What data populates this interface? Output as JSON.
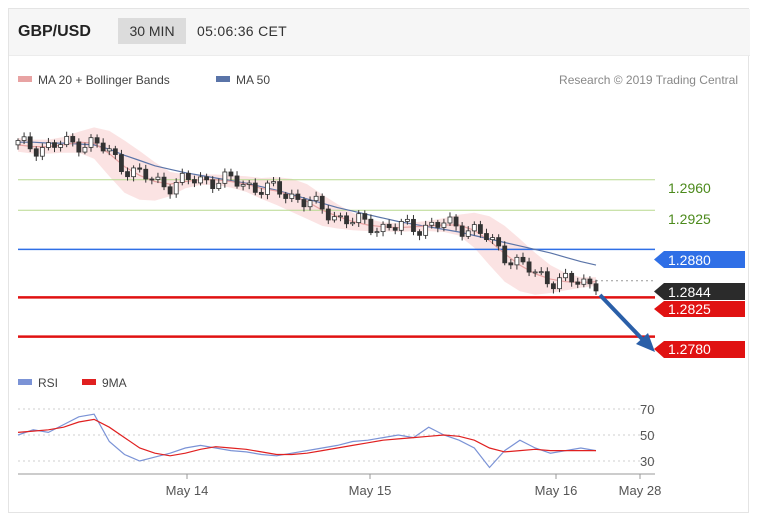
{
  "header": {
    "pair": "GBP/USD",
    "interval": "30 MIN",
    "time": "05:06:36 CET"
  },
  "legend": {
    "ma20": "MA 20 + Bollinger Bands",
    "ma50": "MA 50",
    "credit": "Research © 2019 Trading Central"
  },
  "rsi_legend": {
    "rsi": "RSI",
    "ma9": "9MA"
  },
  "colors": {
    "ma20": "#e8a3a3",
    "bollinger_fill": "#fbe0e0",
    "ma50": "#5a74a8",
    "resistance": "#2f6fe6",
    "support": "#e01212",
    "current": "#2b2b2b",
    "green_lines": "#b8d98f",
    "green_text": "#4c8a1c",
    "arrow": "#2a5fa8",
    "rsi_line": "#7b93d6",
    "rsi_ma": "#e02020"
  },
  "chart_data": [
    {
      "type": "candlestick",
      "title": "GBP/USD",
      "ylim": [
        1.276,
        1.304
      ],
      "x_labels": [
        "May 14",
        "May 15",
        "May 16",
        "May 28"
      ],
      "levels": [
        {
          "value": 1.296,
          "label": "1.2960",
          "kind": "reference"
        },
        {
          "value": 1.2925,
          "label": "1.2925",
          "kind": "reference"
        },
        {
          "value": 1.288,
          "label": "1.2880",
          "kind": "resistance"
        },
        {
          "value": 1.2844,
          "label": "1.2844",
          "kind": "current"
        },
        {
          "value": 1.2825,
          "label": "1.2825",
          "kind": "support"
        },
        {
          "value": 1.278,
          "label": "1.2780",
          "kind": "support"
        }
      ],
      "series": [
        {
          "name": "MA 20 + Bollinger Bands",
          "values": [
            1.3,
            1.2998,
            1.2998,
            1.3,
            1.3003,
            1.3002,
            1.299,
            1.2975,
            1.2965,
            1.2958,
            1.2955,
            1.2958,
            1.296,
            1.296,
            1.2958,
            1.2955,
            1.295,
            1.2947,
            1.2942,
            1.2935,
            1.2925,
            1.2918,
            1.2912,
            1.2908,
            1.2906,
            1.2905,
            1.2906,
            1.2907,
            1.2908,
            1.2908,
            1.2902,
            1.289,
            1.2875,
            1.2862,
            1.2852,
            1.2846,
            1.2843,
            1.2842,
            1.2843
          ]
        },
        {
          "name": "MA 50",
          "values": [
            1.3003,
            1.3003,
            1.3002,
            1.3002,
            1.3001,
            1.3,
            1.2995,
            1.2988,
            1.2982,
            1.2976,
            1.2972,
            1.2968,
            1.2965,
            1.2962,
            1.2959,
            1.2956,
            1.2952,
            1.2948,
            1.2943,
            1.2938,
            1.2933,
            1.2928,
            1.2924,
            1.292,
            1.2916,
            1.2912,
            1.2909,
            1.2906,
            1.2903,
            1.29,
            1.2896,
            1.2892,
            1.2888,
            1.2884,
            1.288,
            1.2876,
            1.2871,
            1.2866,
            1.2862
          ]
        }
      ]
    },
    {
      "type": "line",
      "title": "RSI",
      "ylim": [
        20,
        80
      ],
      "yticks": [
        70,
        50,
        30
      ],
      "series": [
        {
          "name": "RSI",
          "values": [
            50,
            54,
            52,
            58,
            64,
            66,
            45,
            35,
            30,
            33,
            36,
            40,
            42,
            40,
            38,
            37,
            35,
            34,
            36,
            38,
            40,
            42,
            45,
            46,
            48,
            50,
            48,
            56,
            50,
            46,
            40,
            25,
            38,
            46,
            40,
            36,
            38,
            40,
            38
          ]
        },
        {
          "name": "9MA",
          "values": [
            52,
            53,
            54,
            56,
            60,
            62,
            56,
            48,
            40,
            36,
            34,
            36,
            39,
            41,
            40,
            39,
            37,
            35,
            35,
            36,
            38,
            40,
            42,
            44,
            46,
            47,
            48,
            49,
            50,
            49,
            46,
            40,
            37,
            38,
            39,
            38,
            38,
            38,
            38
          ]
        }
      ]
    }
  ]
}
